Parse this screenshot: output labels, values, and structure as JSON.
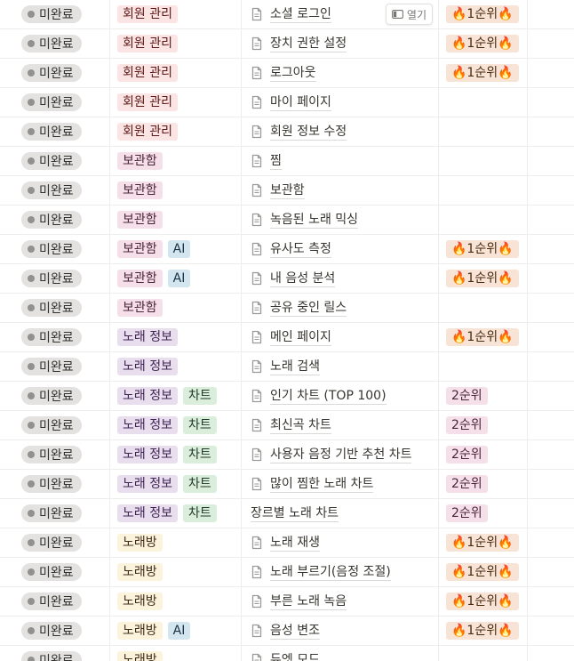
{
  "colors": {
    "status_bg": "#e3e2e0",
    "status_dot": "#91918e",
    "tag_red": "#fbe4e4",
    "tag_pink": "#f5e0e9",
    "tag_blue": "#d3e5ef",
    "tag_purple": "#e8deee",
    "tag_green": "#dbeddb",
    "tag_yellow": "#fbf3db",
    "priority1_bg": "#f8e4d6",
    "priority2_bg": "#f5e0e9"
  },
  "open_button": {
    "label": "열기",
    "icon": "side-panel-icon"
  },
  "rows": [
    {
      "status": "미완료",
      "tags": [
        {
          "label": "회원 관리",
          "color": "red"
        }
      ],
      "title": "소셜 로그인",
      "doc_icon": true,
      "priority": "🔥1순위🔥",
      "priority_level": 1,
      "hover": true
    },
    {
      "status": "미완료",
      "tags": [
        {
          "label": "회원 관리",
          "color": "red"
        }
      ],
      "title": "장치 권한 설정",
      "doc_icon": true,
      "priority": "🔥1순위🔥",
      "priority_level": 1
    },
    {
      "status": "미완료",
      "tags": [
        {
          "label": "회원 관리",
          "color": "red"
        }
      ],
      "title": "로그아웃",
      "doc_icon": true,
      "priority": "🔥1순위🔥",
      "priority_level": 1
    },
    {
      "status": "미완료",
      "tags": [
        {
          "label": "회원 관리",
          "color": "red"
        }
      ],
      "title": "마이 페이지",
      "doc_icon": true,
      "priority": "",
      "priority_level": 0
    },
    {
      "status": "미완료",
      "tags": [
        {
          "label": "회원 관리",
          "color": "red"
        }
      ],
      "title": "회원 정보 수정",
      "doc_icon": true,
      "priority": "",
      "priority_level": 0
    },
    {
      "status": "미완료",
      "tags": [
        {
          "label": "보관함",
          "color": "pink"
        }
      ],
      "title": "찜",
      "doc_icon": true,
      "priority": "",
      "priority_level": 0
    },
    {
      "status": "미완료",
      "tags": [
        {
          "label": "보관함",
          "color": "pink"
        }
      ],
      "title": "보관함",
      "doc_icon": true,
      "priority": "",
      "priority_level": 0
    },
    {
      "status": "미완료",
      "tags": [
        {
          "label": "보관함",
          "color": "pink"
        }
      ],
      "title": "녹음된 노래 믹싱",
      "doc_icon": true,
      "priority": "",
      "priority_level": 0
    },
    {
      "status": "미완료",
      "tags": [
        {
          "label": "보관함",
          "color": "pink"
        },
        {
          "label": "AI",
          "color": "blue"
        }
      ],
      "title": "유사도 측정",
      "doc_icon": true,
      "priority": "🔥1순위🔥",
      "priority_level": 1
    },
    {
      "status": "미완료",
      "tags": [
        {
          "label": "보관함",
          "color": "pink"
        },
        {
          "label": "AI",
          "color": "blue"
        }
      ],
      "title": "내 음성 분석",
      "doc_icon": true,
      "priority": "🔥1순위🔥",
      "priority_level": 1
    },
    {
      "status": "미완료",
      "tags": [
        {
          "label": "보관함",
          "color": "pink"
        }
      ],
      "title": "공유 중인 릴스",
      "doc_icon": true,
      "priority": "",
      "priority_level": 0
    },
    {
      "status": "미완료",
      "tags": [
        {
          "label": "노래 정보",
          "color": "purple"
        }
      ],
      "title": "메인 페이지",
      "doc_icon": true,
      "priority": "🔥1순위🔥",
      "priority_level": 1
    },
    {
      "status": "미완료",
      "tags": [
        {
          "label": "노래 정보",
          "color": "purple"
        }
      ],
      "title": "노래 검색",
      "doc_icon": true,
      "priority": "",
      "priority_level": 0
    },
    {
      "status": "미완료",
      "tags": [
        {
          "label": "노래 정보",
          "color": "purple"
        },
        {
          "label": "차트",
          "color": "green"
        }
      ],
      "title": "인기 차트 (TOP 100)",
      "doc_icon": true,
      "priority": "2순위",
      "priority_level": 2
    },
    {
      "status": "미완료",
      "tags": [
        {
          "label": "노래 정보",
          "color": "purple"
        },
        {
          "label": "차트",
          "color": "green"
        }
      ],
      "title": "최신곡 차트",
      "doc_icon": true,
      "priority": "2순위",
      "priority_level": 2
    },
    {
      "status": "미완료",
      "tags": [
        {
          "label": "노래 정보",
          "color": "purple"
        },
        {
          "label": "차트",
          "color": "green"
        }
      ],
      "title": "사용자 음정 기반 추천 차트",
      "doc_icon": true,
      "priority": "2순위",
      "priority_level": 2
    },
    {
      "status": "미완료",
      "tags": [
        {
          "label": "노래 정보",
          "color": "purple"
        },
        {
          "label": "차트",
          "color": "green"
        }
      ],
      "title": "많이 찜한 노래 차트",
      "doc_icon": true,
      "priority": "2순위",
      "priority_level": 2
    },
    {
      "status": "미완료",
      "tags": [
        {
          "label": "노래 정보",
          "color": "purple"
        },
        {
          "label": "차트",
          "color": "green"
        }
      ],
      "title": "장르별 노래 차트",
      "doc_icon": false,
      "priority": "2순위",
      "priority_level": 2
    },
    {
      "status": "미완료",
      "tags": [
        {
          "label": "노래방",
          "color": "yellow"
        }
      ],
      "title": "노래 재생",
      "doc_icon": true,
      "priority": "🔥1순위🔥",
      "priority_level": 1
    },
    {
      "status": "미완료",
      "tags": [
        {
          "label": "노래방",
          "color": "yellow"
        }
      ],
      "title": "노래 부르기(음정 조절)",
      "doc_icon": true,
      "priority": "🔥1순위🔥",
      "priority_level": 1
    },
    {
      "status": "미완료",
      "tags": [
        {
          "label": "노래방",
          "color": "yellow"
        }
      ],
      "title": "부른 노래 녹음",
      "doc_icon": true,
      "priority": "🔥1순위🔥",
      "priority_level": 1
    },
    {
      "status": "미완료",
      "tags": [
        {
          "label": "노래방",
          "color": "yellow"
        },
        {
          "label": "AI",
          "color": "blue"
        }
      ],
      "title": "음성 변조",
      "doc_icon": true,
      "priority": "🔥1순위🔥",
      "priority_level": 1
    },
    {
      "status": "미완료",
      "tags": [
        {
          "label": "노래방",
          "color": "yellow"
        }
      ],
      "title": "듀엣 모드",
      "doc_icon": true,
      "priority": "",
      "priority_level": 0
    }
  ]
}
